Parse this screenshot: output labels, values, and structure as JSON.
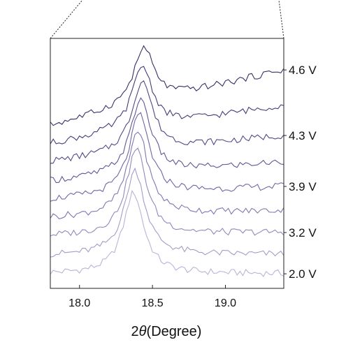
{
  "chart_data": {
    "type": "line",
    "xlabel_prefix": "2",
    "xlabel_symbol": "θ",
    "xlabel_suffix": "(Degree)",
    "ylabel": "",
    "xlim": [
      17.8,
      19.4
    ],
    "x_ticks": [
      18.0,
      18.5,
      19.0
    ],
    "x_tick_labels": [
      "18.0",
      "18.5",
      "19.0"
    ],
    "y_ticks": [],
    "grid": false,
    "legend": "none",
    "series_labels": [
      {
        "text": "2.0 V",
        "series_index": 0
      },
      {
        "text": "3.2 V",
        "series_index": 2
      },
      {
        "text": "3.9 V",
        "series_index": 4
      },
      {
        "text": "4.3 V",
        "series_index": 6
      },
      {
        "text": "4.6 V",
        "series_index": 8
      }
    ],
    "series": [
      {
        "color": "#b9b3d6",
        "baseline": 0.0,
        "peak_x": 18.37,
        "peak_height": 3.35,
        "width": 0.085
      },
      {
        "color": "#a39cc9",
        "baseline": 0.75,
        "peak_x": 18.38,
        "peak_height": 3.5,
        "width": 0.085
      },
      {
        "color": "#9089be",
        "baseline": 1.55,
        "peak_x": 18.39,
        "peak_height": 3.55,
        "width": 0.085
      },
      {
        "color": "#7f77b2",
        "baseline": 2.3,
        "peak_x": 18.4,
        "peak_height": 3.5,
        "width": 0.085
      },
      {
        "color": "#6e67a6",
        "baseline": 3.05,
        "peak_x": 18.41,
        "peak_height": 3.3,
        "width": 0.085
      },
      {
        "color": "#5e5797",
        "baseline": 3.8,
        "peak_x": 18.42,
        "peak_height": 3.1,
        "width": 0.085
      },
      {
        "color": "#4f4888",
        "baseline": 4.6,
        "peak_x": 18.43,
        "peak_height": 2.95,
        "width": 0.085
      },
      {
        "color": "#433c78",
        "baseline": 5.35,
        "peak_x": 18.43,
        "peak_height": 2.6,
        "width": 0.085
      },
      {
        "color": "#363066",
        "baseline": 6.1,
        "peak_x": 18.44,
        "peak_height": 2.3,
        "width": 0.085
      }
    ],
    "drift_final": [
      0.0,
      0.05,
      0.15,
      0.3,
      0.55,
      0.8,
      1.1,
      1.6,
      2.3
    ],
    "ylim": [
      -0.6,
      9.7
    ]
  }
}
